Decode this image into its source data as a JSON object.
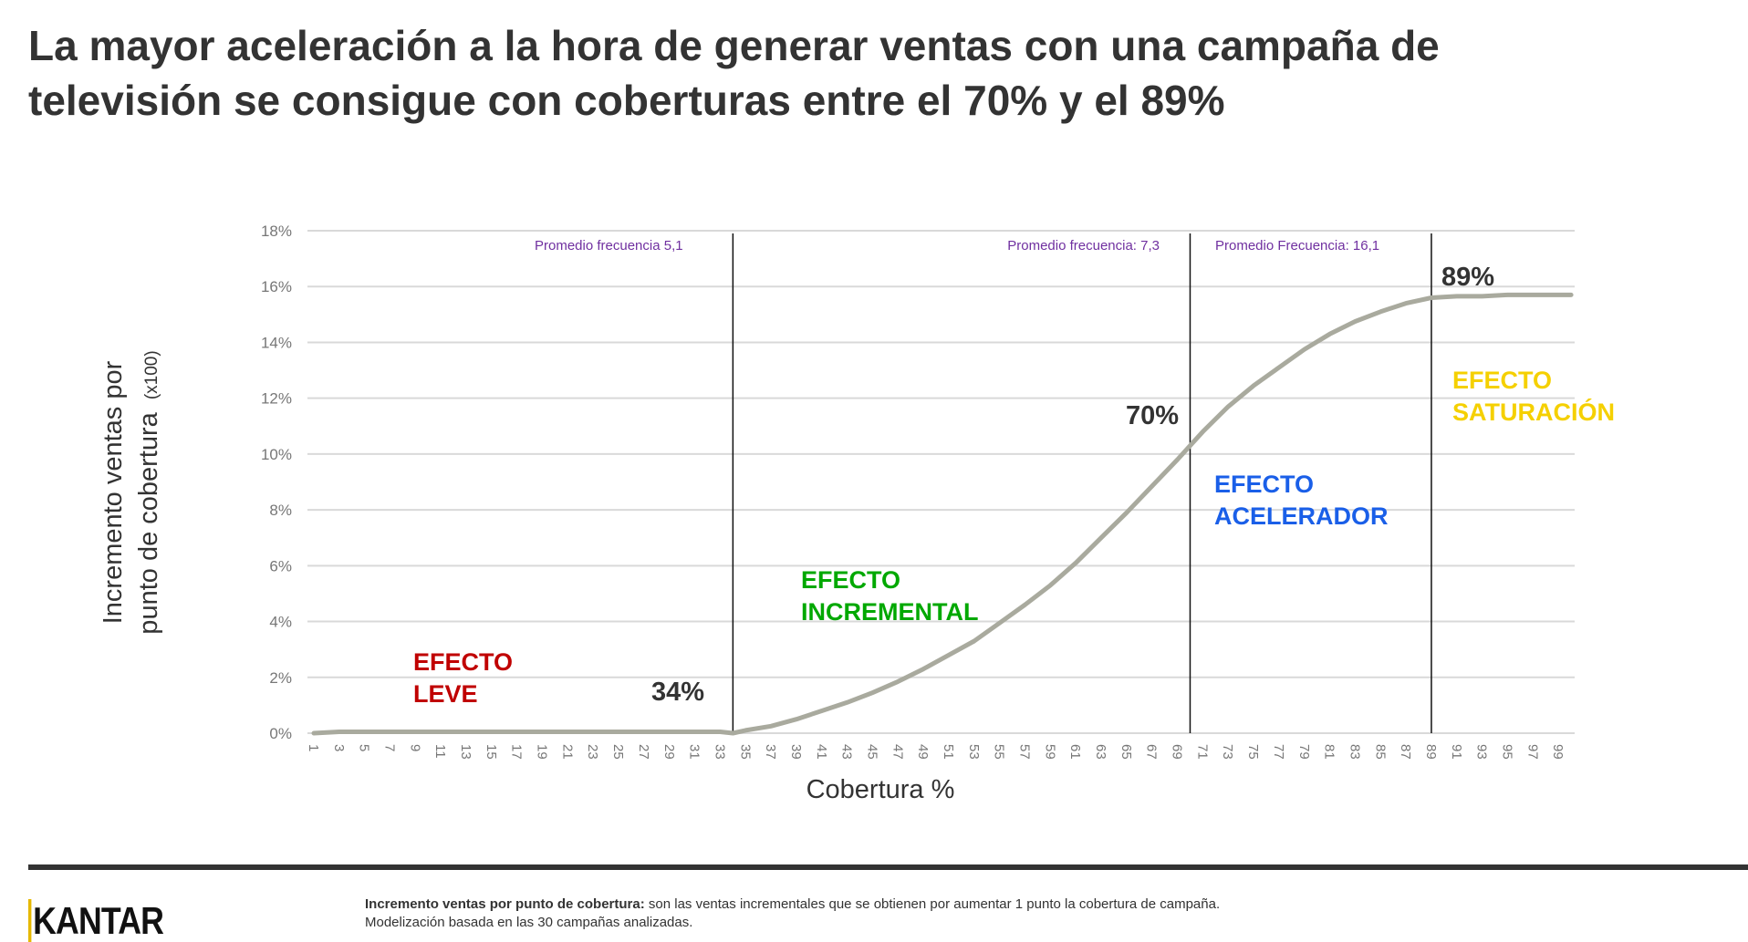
{
  "title": {
    "line1": "La mayor aceleración a la hora de generar ventas con una campaña de",
    "line2": "televisión se consigue con coberturas entre el 70% y el 89%"
  },
  "chart_data": {
    "type": "line",
    "xlabel": "Cobertura %",
    "ylabel_line1": "Incremento ventas por",
    "ylabel_line2": "punto de cobertura",
    "ylabel_suffix": "(x100)",
    "ylim": [
      0,
      18
    ],
    "yticks": [
      "0%",
      "2%",
      "4%",
      "6%",
      "8%",
      "10%",
      "12%",
      "14%",
      "16%",
      "18%"
    ],
    "xlim": [
      1,
      100
    ],
    "xtick_start": 1,
    "xtick_end": 99,
    "xtick_step": 2,
    "grid": "horizontal",
    "line_color": "#A9AA9E",
    "points": [
      [
        1,
        0
      ],
      [
        3,
        0.05
      ],
      [
        10,
        0.05
      ],
      [
        20,
        0.05
      ],
      [
        33,
        0.05
      ],
      [
        34,
        0
      ],
      [
        35,
        0.1
      ],
      [
        37,
        0.25
      ],
      [
        39,
        0.5
      ],
      [
        41,
        0.8
      ],
      [
        43,
        1.1
      ],
      [
        45,
        1.45
      ],
      [
        47,
        1.85
      ],
      [
        49,
        2.3
      ],
      [
        51,
        2.8
      ],
      [
        53,
        3.3
      ],
      [
        55,
        3.95
      ],
      [
        57,
        4.6
      ],
      [
        59,
        5.3
      ],
      [
        61,
        6.1
      ],
      [
        63,
        7.0
      ],
      [
        65,
        7.9
      ],
      [
        67,
        8.85
      ],
      [
        69,
        9.8
      ],
      [
        70,
        10.3
      ],
      [
        71,
        10.8
      ],
      [
        73,
        11.7
      ],
      [
        75,
        12.45
      ],
      [
        77,
        13.1
      ],
      [
        79,
        13.75
      ],
      [
        81,
        14.3
      ],
      [
        83,
        14.75
      ],
      [
        85,
        15.1
      ],
      [
        87,
        15.4
      ],
      [
        89,
        15.6
      ],
      [
        91,
        15.65
      ],
      [
        93,
        15.65
      ],
      [
        95,
        15.7
      ],
      [
        100,
        15.7
      ]
    ],
    "vlines": [
      34,
      70,
      89
    ],
    "annotations": {
      "freq1": "Promedio frecuencia 5,1",
      "freq2": "Promedio frecuencia: 7,3",
      "freq3": "Promedio Frecuencia: 16,1",
      "mark34": "34%",
      "mark70": "70%",
      "mark89": "89%",
      "leve_1": "EFECTO",
      "leve_2": "LEVE",
      "incr_1": "EFECTO",
      "incr_2": "INCREMENTAL",
      "acel_1": "EFECTO",
      "acel_2": "ACELERADOR",
      "satu_1": "EFECTO",
      "satu_2": "SATURACIÓN"
    },
    "colors": {
      "annotation": "#7030A0",
      "leve": "#C00000",
      "incremental": "#00A800",
      "acelerador": "#1A5FE8",
      "saturacion": "#F5D000"
    }
  },
  "footer": {
    "logo": "KANTAR",
    "note_bold": "Incremento ventas por punto de cobertura:",
    "note_text": " son las ventas incrementales que se obtienen por aumentar 1 punto la cobertura de campaña.",
    "note_line2": "Modelización basada en las 30 campañas analizadas."
  }
}
